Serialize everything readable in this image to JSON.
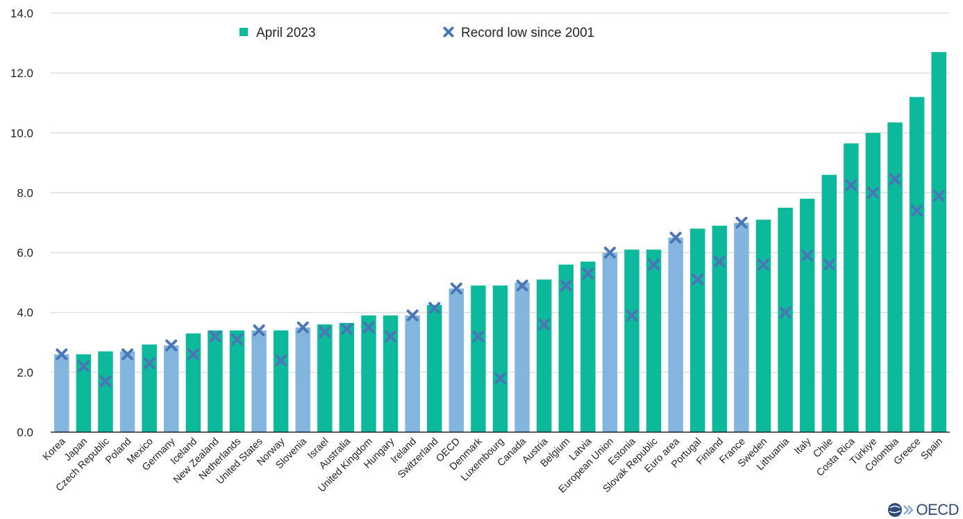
{
  "chart_data": {
    "type": "bar",
    "title": "",
    "xlabel": "",
    "ylabel": "",
    "ylim": [
      0,
      14
    ],
    "yticks": [
      "0.0",
      "2.0",
      "4.0",
      "6.0",
      "8.0",
      "10.0",
      "12.0",
      "14.0"
    ],
    "grid": true,
    "legend_position": "top",
    "categories": [
      "Korea",
      "Japan",
      "Czech Republic",
      "Poland",
      "Mexico",
      "Germany",
      "Iceland",
      "New Zealand",
      "Netherlands",
      "United States",
      "Norway",
      "Slovenia",
      "Israel",
      "Australia",
      "United Kingdom",
      "Hungary",
      "Ireland",
      "Switzerland",
      "OECD",
      "Denmark",
      "Luxembourg",
      "Canada",
      "Austria",
      "Belgium",
      "Latvia",
      "European Union",
      "Estonia",
      "Slovak Republic",
      "Euro area",
      "Portugal",
      "Finland",
      "France",
      "Sweden",
      "Lithuania",
      "Italy",
      "Chile",
      "Costa Rica",
      "Türkiye",
      "Colombia",
      "Greece",
      "Spain"
    ],
    "series": [
      {
        "name": "April 2023",
        "marker": "bar",
        "values": [
          2.6,
          2.6,
          2.7,
          2.7,
          2.93,
          2.9,
          3.3,
          3.4,
          3.4,
          3.4,
          3.4,
          3.5,
          3.6,
          3.65,
          3.9,
          3.9,
          3.9,
          4.25,
          4.8,
          4.9,
          4.9,
          5.0,
          5.1,
          5.6,
          5.7,
          6.0,
          6.1,
          6.1,
          6.5,
          6.8,
          6.9,
          7.0,
          7.1,
          7.5,
          7.8,
          8.6,
          9.65,
          10.0,
          10.35,
          11.2,
          12.7
        ]
      },
      {
        "name": "Record low since 2001",
        "marker": "x",
        "values": [
          2.6,
          2.2,
          1.7,
          2.6,
          2.3,
          2.9,
          2.6,
          3.2,
          3.1,
          3.4,
          2.4,
          3.5,
          3.35,
          3.45,
          3.5,
          3.2,
          3.9,
          4.15,
          4.8,
          3.2,
          1.8,
          4.9,
          3.6,
          4.9,
          5.3,
          6.0,
          3.9,
          5.6,
          6.5,
          5.1,
          5.7,
          7.0,
          5.6,
          4.0,
          5.9,
          5.6,
          8.25,
          8.0,
          8.45,
          7.4,
          7.9
        ]
      }
    ],
    "bar_highlight": [
      true,
      false,
      false,
      true,
      false,
      true,
      false,
      false,
      false,
      true,
      false,
      true,
      false,
      false,
      false,
      false,
      true,
      false,
      true,
      false,
      false,
      true,
      false,
      false,
      false,
      true,
      false,
      false,
      true,
      false,
      false,
      true,
      false,
      false,
      false,
      false,
      false,
      false,
      false,
      false,
      false
    ]
  },
  "colors": {
    "bar": "#0db99b",
    "bar_highlight": "#82b6df",
    "marker": "#4a76b8",
    "grid": "#d9d9d9",
    "axis": "#000000"
  },
  "logo": {
    "text": "OECD",
    "icon": "oecd-globe-icon"
  }
}
